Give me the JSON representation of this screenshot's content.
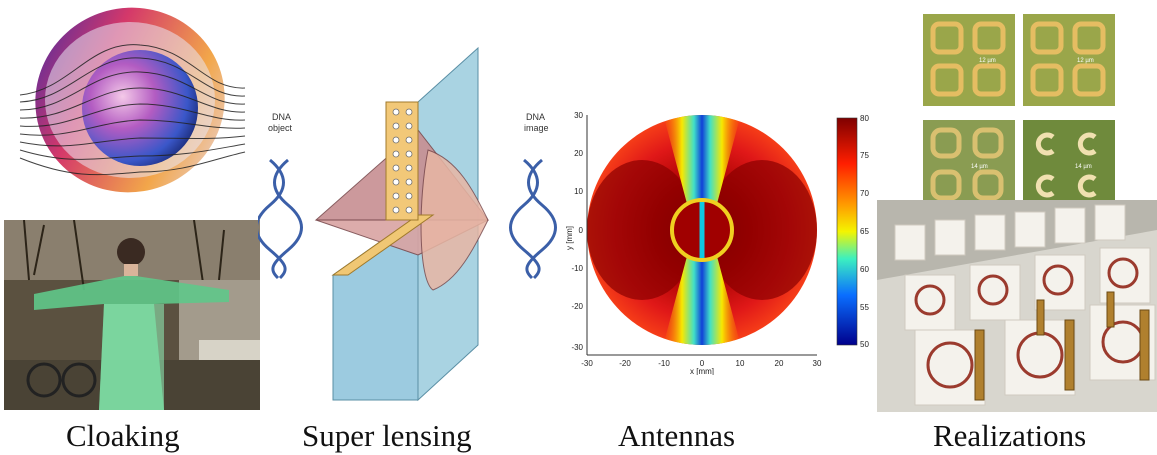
{
  "captions": {
    "cloaking": "Cloaking",
    "super_lensing": "Super lensing",
    "antennas": "Antennas",
    "realizations": "Realizations"
  },
  "lens": {
    "object_label_1": "DNA",
    "object_label_2": "object",
    "image_label_1": "DNA",
    "image_label_2": "image"
  },
  "antenna_plot": {
    "xlabel": "x [mm]",
    "ylabel": "y [mm]",
    "xticks": [
      "-30",
      "-20",
      "-10",
      "0",
      "10",
      "20",
      "30"
    ],
    "yticks": [
      "30",
      "20",
      "10",
      "0",
      "-10",
      "-20",
      "-30"
    ],
    "colorbar_ticks": [
      "80",
      "75",
      "70",
      "65",
      "60",
      "55",
      "50"
    ]
  },
  "realizations": {
    "scale_1": "12 µm",
    "scale_2": "12 µm",
    "scale_3": "14 µm",
    "scale_4": "14 µm"
  }
}
